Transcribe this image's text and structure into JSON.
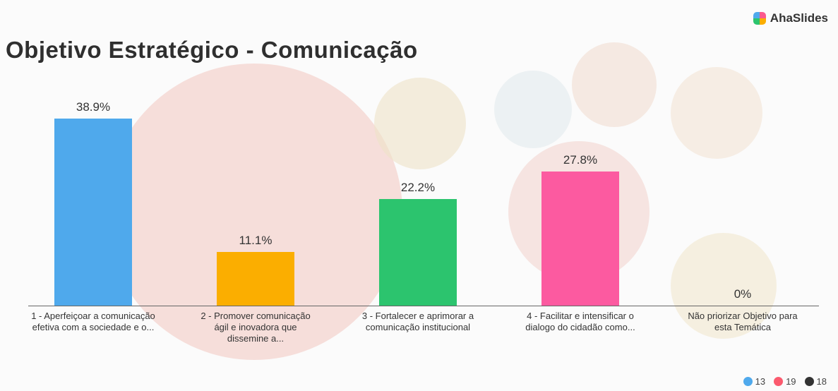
{
  "brand": "AhaSlides",
  "chart_data": {
    "type": "bar",
    "title": "Objetivo Estratégico - Comunicação",
    "categories": [
      "1 - Aperfeiçoar a comunicação efetiva com a sociedade e o...",
      "2 - Promover comunicação ágil e inovadora que dissemine a...",
      "3 - Fortalecer e aprimorar a comunicação institucional",
      "4 - Facilitar e intensificar o dialogo do cidadão como...",
      "Não priorizar Objetivo para esta Temática"
    ],
    "values": [
      38.9,
      11.1,
      22.2,
      27.8,
      0
    ],
    "value_labels": [
      "38.9%",
      "11.1%",
      "22.2%",
      "27.8%",
      "0%"
    ],
    "colors": [
      "#4fa9ec",
      "#fbae00",
      "#2cc46e",
      "#fc5aa0",
      "#9e9e9e"
    ]
  },
  "reactions": [
    13,
    19,
    18
  ]
}
